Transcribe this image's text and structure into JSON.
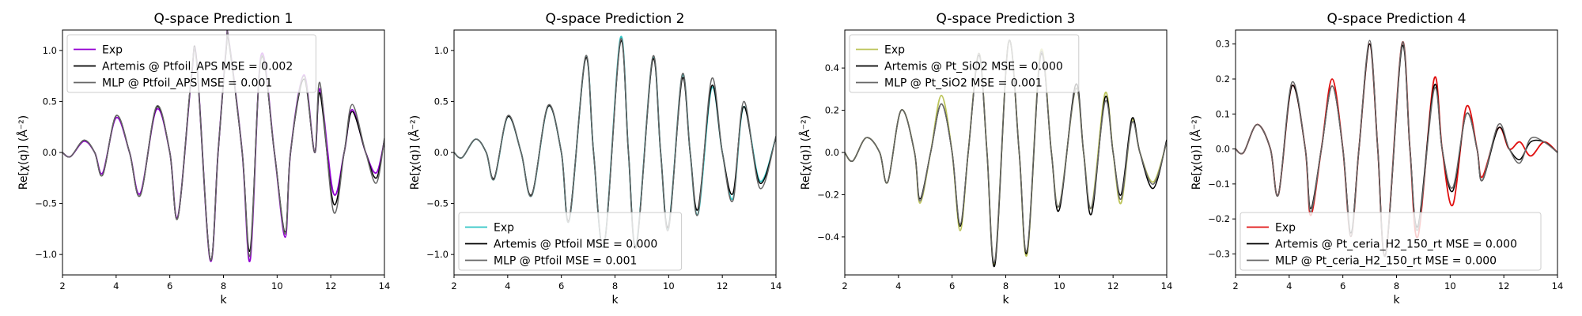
{
  "chart_data": [
    {
      "type": "line",
      "title": "Q-space Prediction 1",
      "xlabel": "k",
      "ylabel": "Re[χ(q)] (Å⁻²)",
      "xlim": [
        2,
        14
      ],
      "ylim": [
        -1.2,
        1.2
      ],
      "xticks": [
        2,
        4,
        6,
        8,
        10,
        12,
        14
      ],
      "yticks": [
        -1.0,
        -0.5,
        0.0,
        0.5,
        1.0
      ],
      "ytick_labels": [
        "−1.0",
        "−0.5",
        "0.0",
        "0.5",
        "1.0"
      ],
      "legend_loc": "upper-left",
      "series": [
        {
          "name": "Exp",
          "color": "#9400d3",
          "x": [
            2.0,
            2.3,
            2.8,
            3.2,
            3.5,
            4.0,
            4.5,
            4.9,
            5.5,
            6.0,
            6.3,
            6.8,
            7.0,
            7.5,
            7.8,
            8.1,
            8.2,
            8.7,
            9.0,
            9.4,
            9.9,
            10.3,
            10.5,
            11.0,
            11.4,
            11.6,
            12.1,
            12.5,
            12.8,
            13.3,
            13.7,
            14.0
          ],
          "y": [
            0.0,
            -0.04,
            0.11,
            0.0,
            -0.2,
            0.34,
            0.0,
            -0.4,
            0.42,
            0.0,
            -0.63,
            0.72,
            0.9,
            -1.05,
            0.0,
            1.02,
            1.1,
            0.0,
            -1.05,
            0.95,
            0.0,
            -0.83,
            0.0,
            0.76,
            0.0,
            0.62,
            -0.4,
            0.0,
            0.42,
            0.0,
            -0.2,
            0.12
          ]
        },
        {
          "name": "Artemis @ Ptfoil_APS MSE = 0.002",
          "color": "#000000",
          "x": [
            2.0,
            2.3,
            2.8,
            3.2,
            3.5,
            4.0,
            4.5,
            4.9,
            5.5,
            6.0,
            6.3,
            6.8,
            7.0,
            7.5,
            7.8,
            8.1,
            8.2,
            8.7,
            9.0,
            9.4,
            9.9,
            10.3,
            10.5,
            11.0,
            11.4,
            11.6,
            12.1,
            12.5,
            12.8,
            13.3,
            13.7,
            14.0
          ],
          "y": [
            0.0,
            -0.04,
            0.12,
            0.0,
            -0.22,
            0.36,
            0.0,
            -0.42,
            0.44,
            0.0,
            -0.64,
            0.73,
            0.9,
            -1.04,
            0.0,
            1.0,
            1.08,
            0.0,
            -0.95,
            0.92,
            0.0,
            -0.78,
            0.0,
            0.72,
            0.0,
            0.58,
            -0.5,
            0.0,
            0.4,
            0.0,
            -0.25,
            0.13
          ]
        },
        {
          "name": "MLP @ Ptfoil_APS MSE = 0.001",
          "color": "#666666",
          "x": [
            2.0,
            2.3,
            2.8,
            3.2,
            3.5,
            4.0,
            4.5,
            4.9,
            5.5,
            6.0,
            6.3,
            6.8,
            7.0,
            7.5,
            7.8,
            8.1,
            8.2,
            8.7,
            9.0,
            9.4,
            9.9,
            10.3,
            10.5,
            11.0,
            11.4,
            11.6,
            12.1,
            12.5,
            12.8,
            13.3,
            13.7,
            14.0
          ],
          "y": [
            0.0,
            -0.04,
            0.12,
            0.0,
            -0.22,
            0.36,
            0.0,
            -0.42,
            0.45,
            0.0,
            -0.64,
            0.74,
            0.88,
            -1.04,
            0.0,
            1.02,
            1.1,
            0.0,
            -1.0,
            0.93,
            0.0,
            -0.8,
            0.0,
            0.75,
            0.0,
            0.68,
            -0.58,
            0.0,
            0.47,
            0.0,
            -0.3,
            0.14
          ]
        }
      ]
    },
    {
      "type": "line",
      "title": "Q-space Prediction 2",
      "xlabel": "k",
      "ylabel": "Re[χ(q)] (Å⁻²)",
      "xlim": [
        2,
        14
      ],
      "ylim": [
        -1.2,
        1.2
      ],
      "xticks": [
        2,
        4,
        6,
        8,
        10,
        12,
        14
      ],
      "yticks": [
        -1.0,
        -0.5,
        0.0,
        0.5,
        1.0
      ],
      "ytick_labels": [
        "−1.0",
        "−0.5",
        "0.0",
        "0.5",
        "1.0"
      ],
      "legend_loc": "lower-left",
      "series": [
        {
          "name": "Exp",
          "color": "#2ec4c4",
          "x": [
            2.0,
            2.3,
            2.8,
            3.2,
            3.5,
            4.0,
            4.5,
            4.9,
            5.5,
            6.0,
            6.3,
            6.9,
            7.2,
            7.6,
            8.2,
            8.5,
            8.8,
            9.4,
            9.7,
            10.0,
            10.5,
            10.8,
            11.1,
            11.6,
            12.0,
            12.4,
            12.8,
            13.4,
            14.0
          ],
          "y": [
            0.0,
            -0.05,
            0.13,
            0.0,
            -0.26,
            0.35,
            0.0,
            -0.42,
            0.45,
            0.0,
            -0.66,
            0.93,
            0.0,
            -0.9,
            1.12,
            0.0,
            -0.9,
            0.92,
            0.0,
            -0.73,
            0.75,
            0.0,
            -0.6,
            0.63,
            0.0,
            -0.45,
            0.45,
            -0.28,
            0.15
          ]
        },
        {
          "name": "Artemis @ Ptfoil MSE = 0.000",
          "color": "#000000",
          "x": [
            2.0,
            2.3,
            2.8,
            3.2,
            3.5,
            4.0,
            4.5,
            4.9,
            5.5,
            6.0,
            6.3,
            6.9,
            7.2,
            7.6,
            8.2,
            8.5,
            8.8,
            9.4,
            9.7,
            10.0,
            10.5,
            10.8,
            11.1,
            11.6,
            12.0,
            12.4,
            12.8,
            13.4,
            14.0
          ],
          "y": [
            0.0,
            -0.05,
            0.13,
            0.0,
            -0.25,
            0.35,
            0.0,
            -0.41,
            0.45,
            0.0,
            -0.65,
            0.92,
            0.0,
            -0.9,
            1.08,
            0.0,
            -0.9,
            0.9,
            0.0,
            -0.72,
            0.72,
            0.0,
            -0.55,
            0.65,
            0.0,
            -0.4,
            0.45,
            -0.3,
            0.15
          ]
        },
        {
          "name": "MLP @ Ptfoil MSE = 0.001",
          "color": "#666666",
          "x": [
            2.0,
            2.3,
            2.8,
            3.2,
            3.5,
            4.0,
            4.5,
            4.9,
            5.5,
            6.0,
            6.3,
            6.9,
            7.2,
            7.6,
            8.2,
            8.5,
            8.8,
            9.4,
            9.7,
            10.0,
            10.5,
            10.8,
            11.1,
            11.6,
            12.0,
            12.4,
            12.8,
            13.4,
            14.0
          ],
          "y": [
            0.0,
            -0.05,
            0.13,
            0.0,
            -0.26,
            0.36,
            0.0,
            -0.42,
            0.46,
            0.0,
            -0.66,
            0.94,
            0.0,
            -0.9,
            1.1,
            0.0,
            -0.92,
            0.93,
            0.0,
            -0.75,
            0.76,
            0.0,
            -0.6,
            0.72,
            0.0,
            -0.47,
            0.5,
            -0.35,
            0.16
          ]
        }
      ]
    },
    {
      "type": "line",
      "title": "Q-space Prediction 3",
      "xlabel": "k",
      "ylabel": "Re[χ(q)] (Å⁻²)",
      "xlim": [
        2,
        14
      ],
      "ylim": [
        -0.58,
        0.58
      ],
      "xticks": [
        2,
        4,
        6,
        8,
        10,
        12,
        14
      ],
      "yticks": [
        -0.4,
        -0.2,
        0.0,
        0.2,
        0.4
      ],
      "ytick_labels": [
        "−0.4",
        "−0.2",
        "0.0",
        "0.2",
        "0.4"
      ],
      "legend_loc": "upper-left",
      "series": [
        {
          "name": "Exp",
          "color": "#bcc45a",
          "x": [
            2.0,
            2.3,
            2.8,
            3.3,
            3.6,
            4.1,
            4.6,
            4.8,
            5.2,
            5.6,
            6.0,
            6.3,
            6.6,
            7.0,
            7.3,
            7.6,
            8.1,
            8.5,
            8.8,
            9.3,
            9.7,
            10.0,
            10.6,
            10.9,
            11.2,
            11.7,
            12.0,
            12.3,
            12.7,
            13.0,
            13.5,
            14.0
          ],
          "y": [
            0.0,
            -0.04,
            0.07,
            0.0,
            -0.14,
            0.2,
            0.0,
            -0.24,
            0.0,
            0.27,
            0.0,
            -0.37,
            0.0,
            0.47,
            0.0,
            -0.52,
            0.52,
            0.0,
            -0.48,
            0.48,
            0.0,
            -0.25,
            0.3,
            0.0,
            -0.26,
            0.28,
            0.0,
            -0.24,
            0.15,
            0.0,
            -0.14,
            0.05
          ]
        },
        {
          "name": "Artemis @ Pt_SiO2 MSE = 0.000",
          "color": "#000000",
          "x": [
            2.0,
            2.3,
            2.8,
            3.3,
            3.6,
            4.1,
            4.6,
            4.8,
            5.2,
            5.6,
            6.0,
            6.3,
            6.6,
            7.0,
            7.3,
            7.6,
            8.1,
            8.5,
            8.8,
            9.3,
            9.7,
            10.0,
            10.6,
            10.9,
            11.2,
            11.7,
            12.0,
            12.3,
            12.7,
            13.0,
            13.5,
            14.0
          ],
          "y": [
            0.0,
            -0.04,
            0.07,
            0.0,
            -0.14,
            0.2,
            0.0,
            -0.22,
            0.0,
            0.23,
            0.0,
            -0.35,
            0.0,
            0.46,
            0.0,
            -0.53,
            0.52,
            0.0,
            -0.47,
            0.46,
            0.0,
            -0.27,
            0.32,
            0.0,
            -0.29,
            0.26,
            0.0,
            -0.2,
            0.16,
            0.0,
            -0.17,
            0.06
          ]
        },
        {
          "name": "MLP @ Pt_SiO2 MSE = 0.001",
          "color": "#666666",
          "x": [
            2.0,
            2.3,
            2.8,
            3.3,
            3.6,
            4.1,
            4.6,
            4.8,
            5.2,
            5.6,
            6.0,
            6.3,
            6.6,
            7.0,
            7.3,
            7.6,
            8.1,
            8.5,
            8.8,
            9.3,
            9.7,
            10.0,
            10.6,
            10.9,
            11.2,
            11.7,
            12.0,
            12.3,
            12.7,
            13.0,
            13.5,
            14.0
          ],
          "y": [
            0.0,
            -0.04,
            0.07,
            0.0,
            -0.14,
            0.2,
            0.0,
            -0.23,
            0.0,
            0.23,
            0.0,
            -0.34,
            0.0,
            0.47,
            0.0,
            -0.51,
            0.52,
            0.0,
            -0.46,
            0.47,
            0.0,
            -0.25,
            0.3,
            0.0,
            -0.26,
            0.24,
            0.0,
            -0.22,
            0.14,
            0.0,
            -0.15,
            0.05
          ]
        }
      ]
    },
    {
      "type": "line",
      "title": "Q-space Prediction 4",
      "xlabel": "k",
      "ylabel": "Re[χ(q)] (Å⁻²)",
      "xlim": [
        2,
        14
      ],
      "ylim": [
        -0.36,
        0.34
      ],
      "xticks": [
        2,
        4,
        6,
        8,
        10,
        12,
        14
      ],
      "yticks": [
        -0.3,
        -0.2,
        -0.1,
        0.0,
        0.1,
        0.2,
        0.3
      ],
      "ytick_labels": [
        "−0.3",
        "−0.2",
        "−0.1",
        "0.0",
        "0.1",
        "0.2",
        "0.3"
      ],
      "legend_loc": "lower-left",
      "series": [
        {
          "name": "Exp",
          "color": "#e01010",
          "x": [
            2.0,
            2.3,
            2.8,
            3.3,
            3.6,
            4.1,
            4.6,
            4.8,
            5.2,
            5.6,
            6.0,
            6.3,
            6.6,
            7.0,
            7.3,
            7.6,
            8.2,
            8.5,
            8.8,
            9.4,
            9.7,
            10.1,
            10.6,
            11.0,
            11.2,
            11.8,
            12.2,
            12.6,
            13.0,
            13.5,
            14.0
          ],
          "y": [
            0.0,
            -0.01,
            0.07,
            0.0,
            -0.13,
            0.18,
            0.0,
            -0.19,
            0.0,
            0.2,
            0.0,
            -0.25,
            0.0,
            0.3,
            0.0,
            -0.3,
            0.3,
            0.0,
            -0.25,
            0.2,
            0.0,
            -0.16,
            0.12,
            0.0,
            -0.08,
            0.06,
            0.0,
            0.02,
            -0.02,
            0.02,
            -0.01
          ]
        },
        {
          "name": "Artemis @ Pt_ceria_H2_150_rt MSE = 0.000",
          "color": "#000000",
          "x": [
            2.0,
            2.3,
            2.8,
            3.3,
            3.6,
            4.1,
            4.6,
            4.8,
            5.2,
            5.6,
            6.0,
            6.3,
            6.6,
            7.0,
            7.3,
            7.6,
            8.2,
            8.5,
            8.8,
            9.4,
            9.7,
            10.1,
            10.6,
            11.0,
            11.2,
            11.8,
            12.2,
            12.6,
            13.0,
            13.5,
            14.0
          ],
          "y": [
            0.0,
            -0.01,
            0.07,
            0.0,
            -0.13,
            0.18,
            0.0,
            -0.17,
            0.0,
            0.18,
            0.0,
            -0.24,
            0.0,
            0.3,
            0.0,
            -0.3,
            0.29,
            0.0,
            -0.22,
            0.18,
            0.0,
            -0.12,
            0.1,
            0.0,
            -0.09,
            0.06,
            0.0,
            -0.03,
            0.02,
            0.02,
            -0.01
          ]
        },
        {
          "name": "MLP @ Pt_ceria_H2_150_rt MSE = 0.000",
          "color": "#666666",
          "x": [
            2.0,
            2.3,
            2.8,
            3.3,
            3.6,
            4.1,
            4.6,
            4.8,
            5.2,
            5.6,
            6.0,
            6.3,
            6.6,
            7.0,
            7.3,
            7.6,
            8.2,
            8.5,
            8.8,
            9.4,
            9.7,
            10.1,
            10.6,
            11.0,
            11.2,
            11.8,
            12.2,
            12.6,
            13.0,
            13.5,
            14.0
          ],
          "y": [
            0.0,
            -0.01,
            0.07,
            0.0,
            -0.13,
            0.19,
            0.0,
            -0.18,
            0.0,
            0.18,
            0.0,
            -0.25,
            0.0,
            0.31,
            0.0,
            -0.3,
            0.3,
            0.0,
            -0.23,
            0.17,
            0.0,
            -0.11,
            0.1,
            0.0,
            -0.09,
            0.07,
            0.0,
            -0.04,
            0.03,
            0.02,
            -0.01
          ]
        }
      ]
    }
  ]
}
